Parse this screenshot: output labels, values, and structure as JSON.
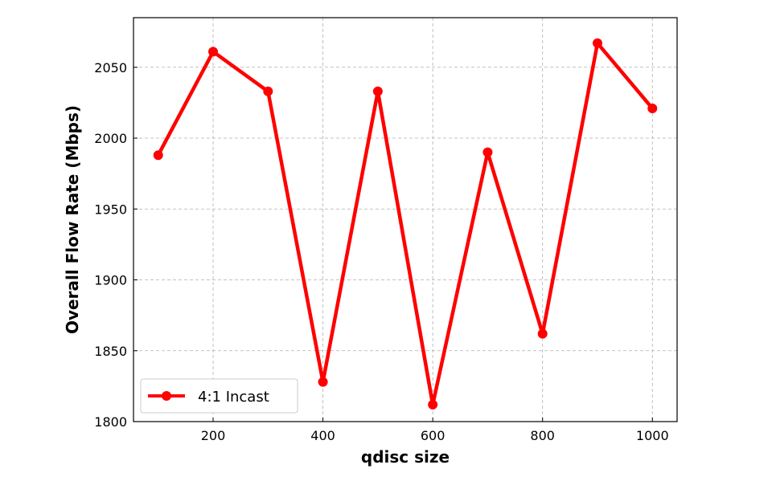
{
  "chart_data": {
    "type": "line",
    "xlabel": "qdisc size",
    "ylabel": "Overall Flow Rate (Mbps)",
    "xlim": [
      55,
      1045
    ],
    "ylim": [
      1800,
      2085
    ],
    "x_ticks": [
      200,
      400,
      600,
      800,
      1000
    ],
    "y_ticks": [
      1800,
      1850,
      1900,
      1950,
      2000,
      2050
    ],
    "grid": true,
    "legend_position": "lower-left",
    "series": [
      {
        "name": "4:1 Incast",
        "color": "#ff0000",
        "marker": "circle",
        "x": [
          100,
          200,
          300,
          400,
          500,
          600,
          700,
          800,
          900,
          1000
        ],
        "y": [
          1988,
          2061,
          2033,
          1828,
          2033,
          1812,
          1990,
          1862,
          2067,
          2021
        ]
      }
    ]
  }
}
